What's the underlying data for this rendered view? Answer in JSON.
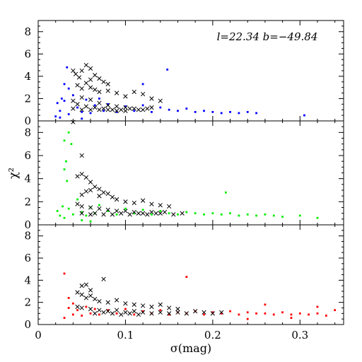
{
  "chart_data": [
    {
      "type": "scatter",
      "panel": "top",
      "annotation": "l=22.34 b=−49.84",
      "xlim": [
        0,
        0.35
      ],
      "ylim": [
        0,
        9
      ],
      "yticks": [
        "0",
        "2",
        "4",
        "6",
        "8"
      ],
      "series": [
        {
          "marker": "dot",
          "color": "#0000ff",
          "points": [
            [
              0.02,
              0.4
            ],
            [
              0.022,
              1.6
            ],
            [
              0.025,
              0.9
            ],
            [
              0.03,
              1.8
            ],
            [
              0.035,
              0.6
            ],
            [
              0.04,
              2.3
            ],
            [
              0.045,
              1.2
            ],
            [
              0.05,
              0.8
            ],
            [
              0.055,
              1.9
            ],
            [
              0.06,
              0.7
            ],
            [
              0.065,
              1.4
            ],
            [
              0.07,
              2.0
            ],
            [
              0.075,
              0.9
            ],
            [
              0.08,
              1.5
            ],
            [
              0.09,
              0.8
            ],
            [
              0.1,
              1.3
            ],
            [
              0.11,
              0.9
            ],
            [
              0.12,
              1.4
            ],
            [
              0.13,
              0.8
            ],
            [
              0.14,
              1.2
            ],
            [
              0.15,
              1.0
            ],
            [
              0.16,
              0.9
            ],
            [
              0.17,
              1.1
            ],
            [
              0.18,
              0.8
            ],
            [
              0.19,
              0.9
            ],
            [
              0.2,
              0.8
            ],
            [
              0.21,
              0.7
            ],
            [
              0.22,
              0.8
            ],
            [
              0.23,
              0.7
            ],
            [
              0.24,
              0.8
            ],
            [
              0.25,
              0.7
            ],
            [
              0.148,
              4.6
            ],
            [
              0.12,
              3.3
            ],
            [
              0.03,
              3.3
            ],
            [
              0.035,
              2.9
            ],
            [
              0.305,
              0.5
            ],
            [
              0.033,
              4.8
            ],
            [
              0.05,
              0.2
            ],
            [
              0.025,
              0.3
            ],
            [
              0.027,
              2.0
            ]
          ]
        },
        {
          "marker": "x",
          "color": "#000000",
          "points": [
            [
              0.04,
              4.5
            ],
            [
              0.043,
              4.2
            ],
            [
              0.047,
              3.9
            ],
            [
              0.05,
              4.5
            ],
            [
              0.055,
              5.0
            ],
            [
              0.06,
              4.7
            ],
            [
              0.065,
              4.1
            ],
            [
              0.07,
              3.8
            ],
            [
              0.075,
              3.5
            ],
            [
              0.08,
              3.3
            ],
            [
              0.06,
              3.7
            ],
            [
              0.055,
              3.4
            ],
            [
              0.045,
              3.2
            ],
            [
              0.05,
              2.9
            ],
            [
              0.06,
              3.0
            ],
            [
              0.065,
              2.8
            ],
            [
              0.07,
              2.6
            ],
            [
              0.08,
              2.7
            ],
            [
              0.09,
              2.5
            ],
            [
              0.1,
              2.2
            ],
            [
              0.11,
              2.6
            ],
            [
              0.12,
              2.4
            ],
            [
              0.13,
              2.0
            ],
            [
              0.14,
              1.8
            ],
            [
              0.05,
              2.1
            ],
            [
              0.06,
              1.9
            ],
            [
              0.04,
              1.8
            ],
            [
              0.07,
              1.6
            ],
            [
              0.08,
              1.4
            ],
            [
              0.09,
              1.3
            ],
            [
              0.1,
              1.2
            ],
            [
              0.11,
              1.1
            ],
            [
              0.12,
              1.0
            ],
            [
              0.13,
              1.2
            ],
            [
              0.045,
              1.5
            ],
            [
              0.055,
              1.3
            ],
            [
              0.065,
              1.2
            ],
            [
              0.075,
              1.1
            ],
            [
              0.085,
              1.0
            ],
            [
              0.095,
              1.0
            ],
            [
              0.105,
              1.1
            ],
            [
              0.115,
              1.0
            ],
            [
              0.125,
              1.1
            ],
            [
              0.04,
              1.1
            ],
            [
              0.05,
              1.0
            ],
            [
              0.06,
              1.0
            ],
            [
              0.07,
              1.0
            ],
            [
              0.08,
              1.0
            ],
            [
              0.09,
              0.9
            ],
            [
              0.1,
              0.9
            ]
          ]
        }
      ]
    },
    {
      "type": "scatter",
      "panel": "middle",
      "xlim": [
        0,
        0.35
      ],
      "ylim": [
        0,
        9
      ],
      "yticks": [
        "0",
        "2",
        "4",
        "6",
        "8"
      ],
      "ylabel": "χ²",
      "series": [
        {
          "marker": "dot",
          "color": "#00ee00",
          "points": [
            [
              0.03,
              7.3
            ],
            [
              0.035,
              8.0
            ],
            [
              0.038,
              7.0
            ],
            [
              0.032,
              5.5
            ],
            [
              0.03,
              4.8
            ],
            [
              0.033,
              3.8
            ],
            [
              0.022,
              1.2
            ],
            [
              0.025,
              0.8
            ],
            [
              0.028,
              1.6
            ],
            [
              0.03,
              0.6
            ],
            [
              0.035,
              1.4
            ],
            [
              0.04,
              0.9
            ],
            [
              0.045,
              2.2
            ],
            [
              0.05,
              1.1
            ],
            [
              0.055,
              0.8
            ],
            [
              0.06,
              1.5
            ],
            [
              0.065,
              1.0
            ],
            [
              0.07,
              1.7
            ],
            [
              0.08,
              1.2
            ],
            [
              0.09,
              0.9
            ],
            [
              0.1,
              1.4
            ],
            [
              0.11,
              1.0
            ],
            [
              0.12,
              1.3
            ],
            [
              0.13,
              0.9
            ],
            [
              0.14,
              1.2
            ],
            [
              0.15,
              1.0
            ],
            [
              0.16,
              0.9
            ],
            [
              0.17,
              1.1
            ],
            [
              0.18,
              1.0
            ],
            [
              0.19,
              0.9
            ],
            [
              0.2,
              1.0
            ],
            [
              0.21,
              0.9
            ],
            [
              0.22,
              1.0
            ],
            [
              0.23,
              0.8
            ],
            [
              0.24,
              0.9
            ],
            [
              0.25,
              0.8
            ],
            [
              0.26,
              0.9
            ],
            [
              0.27,
              0.8
            ],
            [
              0.28,
              0.7
            ],
            [
              0.3,
              0.8
            ],
            [
              0.32,
              0.6
            ],
            [
              0.215,
              2.8
            ],
            [
              0.05,
              0.4
            ],
            [
              0.06,
              0.3
            ]
          ]
        },
        {
          "marker": "x",
          "color": "#000000",
          "points": [
            [
              0.04,
              8.9
            ],
            [
              0.05,
              6.0
            ],
            [
              0.045,
              4.2
            ],
            [
              0.05,
              4.4
            ],
            [
              0.055,
              4.1
            ],
            [
              0.06,
              3.7
            ],
            [
              0.065,
              3.3
            ],
            [
              0.07,
              3.1
            ],
            [
              0.075,
              2.8
            ],
            [
              0.06,
              3.0
            ],
            [
              0.055,
              2.9
            ],
            [
              0.05,
              2.6
            ],
            [
              0.07,
              2.5
            ],
            [
              0.08,
              2.7
            ],
            [
              0.085,
              2.4
            ],
            [
              0.09,
              2.2
            ],
            [
              0.1,
              2.0
            ],
            [
              0.11,
              1.9
            ],
            [
              0.12,
              2.1
            ],
            [
              0.13,
              1.8
            ],
            [
              0.14,
              1.7
            ],
            [
              0.15,
              1.6
            ],
            [
              0.045,
              1.8
            ],
            [
              0.05,
              1.6
            ],
            [
              0.06,
              1.5
            ],
            [
              0.07,
              1.4
            ],
            [
              0.08,
              1.3
            ],
            [
              0.09,
              1.2
            ],
            [
              0.1,
              1.2
            ],
            [
              0.11,
              1.1
            ],
            [
              0.12,
              1.0
            ],
            [
              0.13,
              1.1
            ],
            [
              0.14,
              1.0
            ],
            [
              0.05,
              1.0
            ],
            [
              0.06,
              0.9
            ],
            [
              0.065,
              1.0
            ],
            [
              0.075,
              0.9
            ],
            [
              0.085,
              0.9
            ],
            [
              0.095,
              1.0
            ],
            [
              0.105,
              0.9
            ],
            [
              0.115,
              1.0
            ],
            [
              0.125,
              0.9
            ],
            [
              0.135,
              1.0
            ],
            [
              0.145,
              1.1
            ],
            [
              0.155,
              0.9
            ],
            [
              0.165,
              1.0
            ]
          ]
        }
      ]
    },
    {
      "type": "scatter",
      "panel": "bottom",
      "xlim": [
        0,
        0.35
      ],
      "ylim": [
        0,
        9
      ],
      "yticks": [
        "0",
        "2",
        "4",
        "6",
        "8"
      ],
      "xticks": [
        "0",
        "0.1",
        "0.2",
        "0.3"
      ],
      "xlabel": "σ(mag)",
      "series": [
        {
          "marker": "dot",
          "color": "#ff0000",
          "points": [
            [
              0.03,
              4.6
            ],
            [
              0.17,
              4.3
            ],
            [
              0.035,
              2.4
            ],
            [
              0.04,
              1.9
            ],
            [
              0.03,
              0.6
            ],
            [
              0.035,
              1.5
            ],
            [
              0.04,
              0.9
            ],
            [
              0.045,
              1.3
            ],
            [
              0.05,
              0.8
            ],
            [
              0.055,
              1.6
            ],
            [
              0.06,
              1.0
            ],
            [
              0.065,
              1.4
            ],
            [
              0.07,
              0.9
            ],
            [
              0.08,
              1.3
            ],
            [
              0.09,
              1.0
            ],
            [
              0.1,
              1.4
            ],
            [
              0.11,
              0.9
            ],
            [
              0.12,
              1.2
            ],
            [
              0.13,
              1.0
            ],
            [
              0.14,
              1.3
            ],
            [
              0.15,
              0.9
            ],
            [
              0.16,
              1.1
            ],
            [
              0.17,
              1.0
            ],
            [
              0.18,
              1.2
            ],
            [
              0.19,
              0.9
            ],
            [
              0.2,
              1.1
            ],
            [
              0.21,
              1.0
            ],
            [
              0.22,
              1.2
            ],
            [
              0.23,
              0.9
            ],
            [
              0.24,
              1.1
            ],
            [
              0.25,
              1.0
            ],
            [
              0.26,
              1.0
            ],
            [
              0.27,
              0.9
            ],
            [
              0.28,
              1.1
            ],
            [
              0.29,
              0.9
            ],
            [
              0.3,
              1.0
            ],
            [
              0.31,
              0.9
            ],
            [
              0.32,
              1.0
            ],
            [
              0.33,
              0.8
            ],
            [
              0.34,
              1.3
            ],
            [
              0.26,
              1.8
            ],
            [
              0.32,
              1.6
            ],
            [
              0.24,
              0.5
            ],
            [
              0.29,
              0.6
            ]
          ]
        },
        {
          "marker": "x",
          "color": "#000000",
          "points": [
            [
              0.075,
              4.1
            ],
            [
              0.05,
              3.5
            ],
            [
              0.055,
              3.6
            ],
            [
              0.06,
              3.1
            ],
            [
              0.045,
              2.9
            ],
            [
              0.05,
              2.7
            ],
            [
              0.055,
              2.4
            ],
            [
              0.06,
              2.6
            ],
            [
              0.065,
              2.3
            ],
            [
              0.07,
              2.1
            ],
            [
              0.08,
              2.0
            ],
            [
              0.09,
              2.2
            ],
            [
              0.1,
              1.9
            ],
            [
              0.11,
              1.8
            ],
            [
              0.12,
              1.7
            ],
            [
              0.13,
              1.6
            ],
            [
              0.14,
              1.8
            ],
            [
              0.15,
              1.5
            ],
            [
              0.16,
              1.4
            ],
            [
              0.045,
              1.6
            ],
            [
              0.05,
              1.5
            ],
            [
              0.06,
              1.4
            ],
            [
              0.07,
              1.3
            ],
            [
              0.08,
              1.2
            ],
            [
              0.09,
              1.3
            ],
            [
              0.1,
              1.1
            ],
            [
              0.11,
              1.2
            ],
            [
              0.12,
              1.1
            ],
            [
              0.13,
              1.0
            ],
            [
              0.14,
              1.1
            ],
            [
              0.15,
              1.0
            ],
            [
              0.16,
              1.1
            ],
            [
              0.17,
              1.0
            ],
            [
              0.18,
              1.2
            ],
            [
              0.19,
              1.1
            ],
            [
              0.2,
              1.0
            ],
            [
              0.21,
              1.1
            ],
            [
              0.065,
              1.0
            ],
            [
              0.075,
              1.1
            ],
            [
              0.085,
              1.0
            ],
            [
              0.095,
              0.9
            ],
            [
              0.105,
              1.0
            ],
            [
              0.115,
              0.9
            ]
          ]
        }
      ]
    }
  ]
}
